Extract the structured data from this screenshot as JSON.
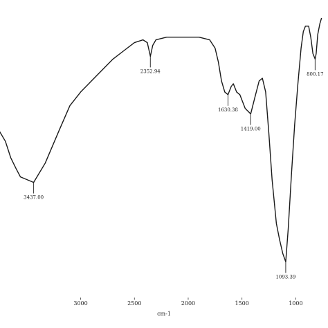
{
  "chart_data": {
    "type": "line",
    "title": "",
    "xlabel": "cm-1",
    "ylabel": "",
    "x_reversed": true,
    "xlim": [
      3750,
      700
    ],
    "grid": false,
    "legend": "none",
    "line_color": "#1a1a1a",
    "x_ticks": [
      {
        "value": 3000,
        "label": "3000"
      },
      {
        "value": 2500,
        "label": "2500"
      },
      {
        "value": 2000,
        "label": "2000"
      },
      {
        "value": 1500,
        "label": "1500"
      },
      {
        "value": 1000,
        "label": "1000"
      }
    ],
    "ylim": [
      0,
      100
    ],
    "series": [
      {
        "points": [
          [
            3760,
            58
          ],
          [
            3700,
            54
          ],
          [
            3650,
            48
          ],
          [
            3600,
            44
          ],
          [
            3560,
            41
          ],
          [
            3437,
            39
          ],
          [
            3330,
            46
          ],
          [
            3200,
            58
          ],
          [
            3100,
            67
          ],
          [
            3000,
            72
          ],
          [
            2900,
            76
          ],
          [
            2800,
            80
          ],
          [
            2700,
            84
          ],
          [
            2600,
            87
          ],
          [
            2500,
            90
          ],
          [
            2420,
            91
          ],
          [
            2380,
            90
          ],
          [
            2352,
            85
          ],
          [
            2330,
            89
          ],
          [
            2300,
            91
          ],
          [
            2200,
            92
          ],
          [
            2100,
            92
          ],
          [
            2000,
            92
          ],
          [
            1900,
            92
          ],
          [
            1800,
            91
          ],
          [
            1750,
            88
          ],
          [
            1720,
            83
          ],
          [
            1690,
            76
          ],
          [
            1660,
            72
          ],
          [
            1630,
            71
          ],
          [
            1600,
            74
          ],
          [
            1580,
            75
          ],
          [
            1550,
            72
          ],
          [
            1520,
            71
          ],
          [
            1500,
            69
          ],
          [
            1470,
            66
          ],
          [
            1419,
            64
          ],
          [
            1380,
            70
          ],
          [
            1340,
            76
          ],
          [
            1310,
            77
          ],
          [
            1280,
            72
          ],
          [
            1250,
            57
          ],
          [
            1220,
            40
          ],
          [
            1200,
            32
          ],
          [
            1180,
            24
          ],
          [
            1150,
            18
          ],
          [
            1120,
            13
          ],
          [
            1093,
            10
          ],
          [
            1070,
            22
          ],
          [
            1040,
            42
          ],
          [
            1010,
            60
          ],
          [
            980,
            75
          ],
          [
            950,
            88
          ],
          [
            930,
            94
          ],
          [
            910,
            96
          ],
          [
            880,
            96
          ],
          [
            860,
            92
          ],
          [
            840,
            86
          ],
          [
            820,
            84
          ],
          [
            810,
            86
          ],
          [
            795,
            93
          ],
          [
            775,
            97
          ],
          [
            760,
            99
          ]
        ]
      }
    ],
    "annotations": [
      {
        "text": "3437.00",
        "x": 3437,
        "y": 39
      },
      {
        "text": "2352.94",
        "x": 2352,
        "y": 85
      },
      {
        "text": "1630.38",
        "x": 1630,
        "y": 71
      },
      {
        "text": "1419.00",
        "x": 1419,
        "y": 64
      },
      {
        "text": "1093.39",
        "x": 1093,
        "y": 10
      },
      {
        "text": "800.17",
        "x": 820,
        "y": 84
      }
    ]
  }
}
